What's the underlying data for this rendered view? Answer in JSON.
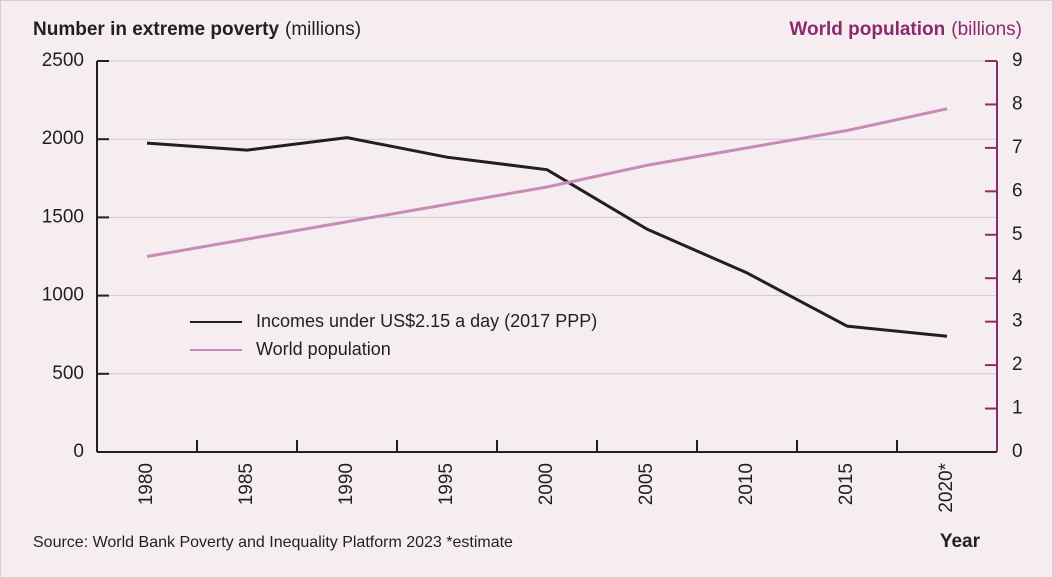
{
  "chart_data": {
    "type": "line",
    "title": "Number in extreme poverty",
    "title_unit": "(millions)",
    "y2_title": "World population",
    "y2_title_unit": "(billions)",
    "x_label": "Year",
    "source": "Source: World Bank Poverty and Inequality Platform 2023  *estimate",
    "categories": [
      "1980",
      "1985",
      "1990",
      "1995",
      "2000",
      "2005",
      "2010",
      "2015",
      "2020*"
    ],
    "series": [
      {
        "name": "Incomes under US$2.15 a day (2017 PPP)",
        "color": "#231f20",
        "values": [
          1975,
          1930,
          2010,
          1885,
          1805,
          1425,
          1145,
          805,
          740
        ]
      },
      {
        "name": "World population",
        "color": "#c98bb5",
        "axis": "y2",
        "values": [
          4.5,
          4.9,
          5.3,
          5.7,
          6.1,
          6.6,
          7.0,
          7.4,
          7.9
        ]
      }
    ],
    "ylim": [
      0,
      2500
    ],
    "yticks": [
      0,
      500,
      1000,
      1500,
      2000,
      2500
    ],
    "y2lim": [
      0,
      9
    ],
    "y2ticks": [
      0,
      1,
      2,
      3,
      4,
      5,
      6,
      7,
      8,
      9
    ],
    "y2_color": "#8b2a6e",
    "grid": true,
    "legend": "left"
  }
}
